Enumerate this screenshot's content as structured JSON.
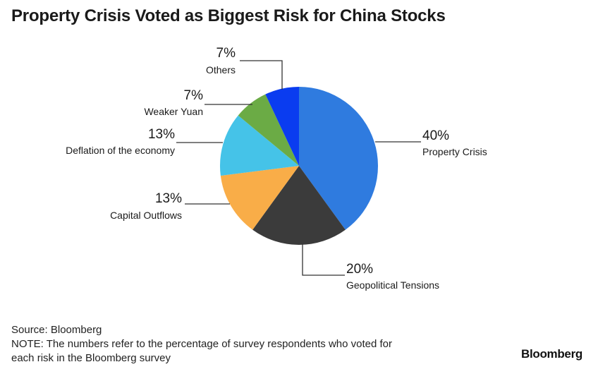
{
  "chart_data": {
    "type": "pie",
    "title": "Property Crisis Voted as Biggest Risk for China Stocks",
    "slices": [
      {
        "label": "Property Crisis",
        "value": 40,
        "value_label": "40%",
        "color": "#2f7bdf"
      },
      {
        "label": "Geopolitical Tensions",
        "value": 20,
        "value_label": "20%",
        "color": "#3b3b3b"
      },
      {
        "label": "Capital Outflows",
        "value": 13,
        "value_label": "13%",
        "color": "#f9ad48"
      },
      {
        "label": "Deflation of the economy",
        "value": 13,
        "value_label": "13%",
        "color": "#45c3e8"
      },
      {
        "label": "Weaker Yuan",
        "value": 7,
        "value_label": "7%",
        "color": "#6bab45"
      },
      {
        "label": "Others",
        "value": 7,
        "value_label": "7%",
        "color": "#0a3cf0"
      }
    ],
    "start": "12 o'clock",
    "direction": "clockwise",
    "legend": "none"
  },
  "footer": {
    "source": "Source: Bloomberg",
    "note_line1": "NOTE: The numbers refer to the percentage of survey respondents who voted for",
    "note_line2": "each risk in the Bloomberg survey"
  },
  "brand": "Bloomberg"
}
